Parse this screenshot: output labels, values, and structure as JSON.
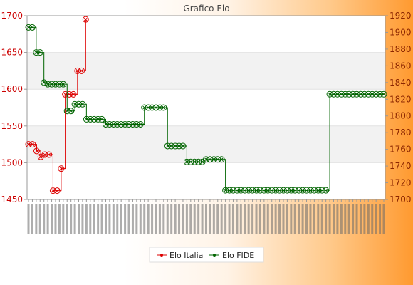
{
  "chart_data": {
    "type": "line",
    "title": "Grafico Elo",
    "xlabel": "",
    "ylabel": "",
    "y_left_range": [
      1450,
      1700
    ],
    "y_right_range": [
      1700,
      1920
    ],
    "y_left_ticks": [
      "1450",
      "1500",
      "1550",
      "1600",
      "1650",
      "1700"
    ],
    "y_right_ticks": [
      "1700",
      "1720",
      "1740",
      "1760",
      "1780",
      "1800",
      "1820",
      "1840",
      "1860",
      "1880",
      "1900",
      "1920"
    ],
    "grid": "horizontal bands",
    "legend_position": "bottom",
    "series": [
      {
        "name": "Elo Italia",
        "axis": "left",
        "color": "#dd0000",
        "values": [
          1525,
          1525,
          1516,
          1508,
          1511,
          1511,
          1462,
          1462,
          1492,
          1593,
          1593,
          1593,
          1625,
          1625,
          1695
        ]
      },
      {
        "name": "Elo FIDE",
        "axis": "right",
        "color": "#006400",
        "values": [
          1906,
          1906,
          1876,
          1876,
          1840,
          1838,
          1838,
          1838,
          1838,
          1838,
          1806,
          1806,
          1814,
          1814,
          1814,
          1796,
          1796,
          1796,
          1796,
          1796,
          1790,
          1790,
          1790,
          1790,
          1790,
          1790,
          1790,
          1790,
          1790,
          1790,
          1810,
          1810,
          1810,
          1810,
          1810,
          1810,
          1764,
          1764,
          1764,
          1764,
          1764,
          1745,
          1745,
          1745,
          1745,
          1745,
          1748,
          1748,
          1748,
          1748,
          1748,
          1711,
          1711,
          1711,
          1711,
          1711,
          1711,
          1711,
          1711,
          1711,
          1711,
          1711,
          1711,
          1711,
          1711,
          1711,
          1711,
          1711,
          1711,
          1711,
          1711,
          1711,
          1711,
          1711,
          1711,
          1711,
          1711,
          1711,
          1826,
          1826,
          1826,
          1826,
          1826,
          1826,
          1826,
          1826,
          1826,
          1826,
          1826,
          1826,
          1826,
          1826,
          1826
        ]
      }
    ]
  }
}
